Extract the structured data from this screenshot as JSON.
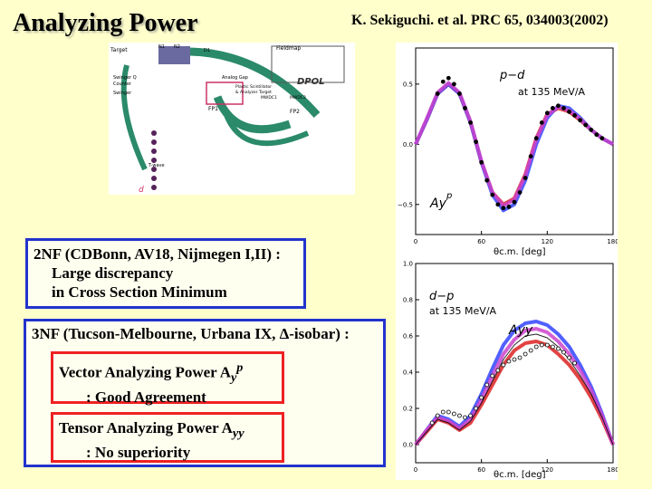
{
  "slide": {
    "title": "Analyzing Power",
    "reference": "K. Sekiguchi. et al. PRC 65, 034003(2002)"
  },
  "setup_diagram": {
    "labels": {
      "target": "Target",
      "n1": "N1",
      "n2": "N2",
      "d1": "D1",
      "fieldmap": "Fieldmap",
      "swinger_q": "Swinger Q",
      "counter": "Counter",
      "swinger": "Swinger",
      "analog_gap": "Analog Gap",
      "plastic": "Plastic Scintillator",
      "analyzer": "& Analyzer Target",
      "dpol": "DPOL",
      "mwdc1": "MWDC1",
      "mwdc2": "MWDC2",
      "fp1": "FP1",
      "fp2": "FP2",
      "beam": "T-wave",
      "d": "d"
    }
  },
  "box_2nf": {
    "line1": "2NF (CDBonn, AV18, Nijmegen I,II) :",
    "line2": "Large discrepancy",
    "line3": "in Cross Section Minimum"
  },
  "box_3nf": {
    "line1": "3NF (Tucson-Melbourne, Urbana IX, Δ-isobar) :",
    "vector": {
      "line1_prefix": "Vector Analyzing Power A",
      "line1_sub": "y",
      "line1_sup": "p",
      "line2": ": Good Agreement"
    },
    "tensor": {
      "line1_prefix": "Tensor Analyzing Power A",
      "line1_sub": "yy",
      "line2": ": No superiority"
    }
  },
  "chart_data": [
    {
      "type": "line",
      "panel_label": "p−d",
      "energy_label": "at 135 MeV/A",
      "observable": "Ay",
      "observable_sup": "p",
      "xlabel": "θc.m. [deg]",
      "xlim": [
        0,
        180
      ],
      "ylim": [
        -0.75,
        0.8
      ],
      "x_ticks": [
        0,
        60,
        120,
        180
      ],
      "y_ticks": [
        -0.5,
        0.0,
        0.5
      ],
      "y_tick_labels": [
        "−0.5",
        "0.0",
        "0.5"
      ],
      "x": [
        0,
        10,
        20,
        30,
        40,
        50,
        60,
        70,
        80,
        90,
        100,
        110,
        120,
        130,
        140,
        150,
        160,
        170,
        180
      ],
      "series": [
        {
          "color": "#dd2222",
          "values": [
            0.0,
            0.2,
            0.42,
            0.5,
            0.42,
            0.18,
            -0.15,
            -0.4,
            -0.5,
            -0.45,
            -0.25,
            0.05,
            0.25,
            0.3,
            0.27,
            0.2,
            0.12,
            0.05,
            0.0
          ]
        },
        {
          "color": "#3344ff",
          "values": [
            0.0,
            0.2,
            0.42,
            0.5,
            0.42,
            0.18,
            -0.15,
            -0.42,
            -0.55,
            -0.5,
            -0.3,
            0.0,
            0.22,
            0.32,
            0.3,
            0.22,
            0.12,
            0.05,
            0.0
          ]
        },
        {
          "color": "#cc44cc",
          "values": [
            0.0,
            0.21,
            0.43,
            0.51,
            0.43,
            0.19,
            -0.14,
            -0.4,
            -0.51,
            -0.46,
            -0.26,
            0.04,
            0.24,
            0.31,
            0.28,
            0.21,
            0.12,
            0.05,
            0.0
          ]
        }
      ],
      "points": {
        "x": [
          20,
          25,
          30,
          35,
          40,
          45,
          50,
          55,
          60,
          65,
          70,
          75,
          80,
          85,
          90,
          95,
          100,
          105,
          110,
          115,
          120,
          125,
          130,
          135,
          140,
          145,
          150,
          155,
          160,
          165,
          170
        ],
        "y": [
          0.42,
          0.52,
          0.55,
          0.5,
          0.42,
          0.3,
          0.18,
          0.02,
          -0.15,
          -0.3,
          -0.42,
          -0.5,
          -0.53,
          -0.52,
          -0.48,
          -0.4,
          -0.28,
          -0.1,
          0.05,
          0.18,
          0.26,
          0.3,
          0.32,
          0.3,
          0.27,
          0.24,
          0.2,
          0.16,
          0.12,
          0.08,
          0.05
        ]
      }
    },
    {
      "type": "line",
      "panel_label": "d−p",
      "energy_label": "at 135 MeV/A",
      "observable": "Ayy",
      "xlabel": "θc.m. [deg]",
      "xlim": [
        0,
        180
      ],
      "ylim": [
        -0.1,
        1.0
      ],
      "x_ticks": [
        0,
        60,
        120,
        180
      ],
      "y_ticks": [
        0.0,
        0.2,
        0.4,
        0.6,
        0.8,
        1.0
      ],
      "y_tick_labels": [
        "0.0",
        "0.2",
        "0.4",
        "0.6",
        "0.8",
        "1.0"
      ],
      "x": [
        0,
        10,
        20,
        30,
        40,
        50,
        60,
        70,
        80,
        90,
        100,
        110,
        120,
        130,
        140,
        150,
        160,
        170,
        180
      ],
      "series": [
        {
          "color": "#3344ff",
          "values": [
            0.0,
            0.08,
            0.16,
            0.14,
            0.1,
            0.16,
            0.28,
            0.42,
            0.55,
            0.63,
            0.67,
            0.68,
            0.66,
            0.61,
            0.54,
            0.44,
            0.32,
            0.17,
            0.0
          ]
        },
        {
          "color": "#dd2222",
          "values": [
            0.0,
            0.07,
            0.14,
            0.12,
            0.08,
            0.12,
            0.22,
            0.33,
            0.44,
            0.52,
            0.56,
            0.57,
            0.55,
            0.5,
            0.44,
            0.36,
            0.26,
            0.14,
            0.0
          ]
        },
        {
          "color": "#cc44cc",
          "values": [
            0.0,
            0.08,
            0.15,
            0.13,
            0.09,
            0.14,
            0.25,
            0.38,
            0.5,
            0.58,
            0.63,
            0.64,
            0.62,
            0.57,
            0.5,
            0.41,
            0.3,
            0.16,
            0.0
          ]
        },
        {
          "color": "#000000",
          "values": [
            0.0,
            0.07,
            0.14,
            0.12,
            0.08,
            0.13,
            0.23,
            0.35,
            0.47,
            0.55,
            0.6,
            0.61,
            0.59,
            0.54,
            0.47,
            0.38,
            0.28,
            0.15,
            0.0
          ]
        }
      ],
      "points": {
        "x": [
          15,
          20,
          25,
          30,
          35,
          40,
          45,
          50,
          55,
          60,
          65,
          70,
          75,
          80,
          85,
          90,
          95,
          100,
          105,
          110,
          115,
          120,
          125,
          130,
          135,
          140,
          145
        ],
        "y": [
          0.12,
          0.16,
          0.18,
          0.18,
          0.17,
          0.16,
          0.15,
          0.16,
          0.2,
          0.26,
          0.33,
          0.38,
          0.41,
          0.44,
          0.46,
          0.47,
          0.48,
          0.5,
          0.52,
          0.54,
          0.55,
          0.55,
          0.54,
          0.53,
          0.51,
          0.48,
          0.45
        ]
      }
    }
  ]
}
